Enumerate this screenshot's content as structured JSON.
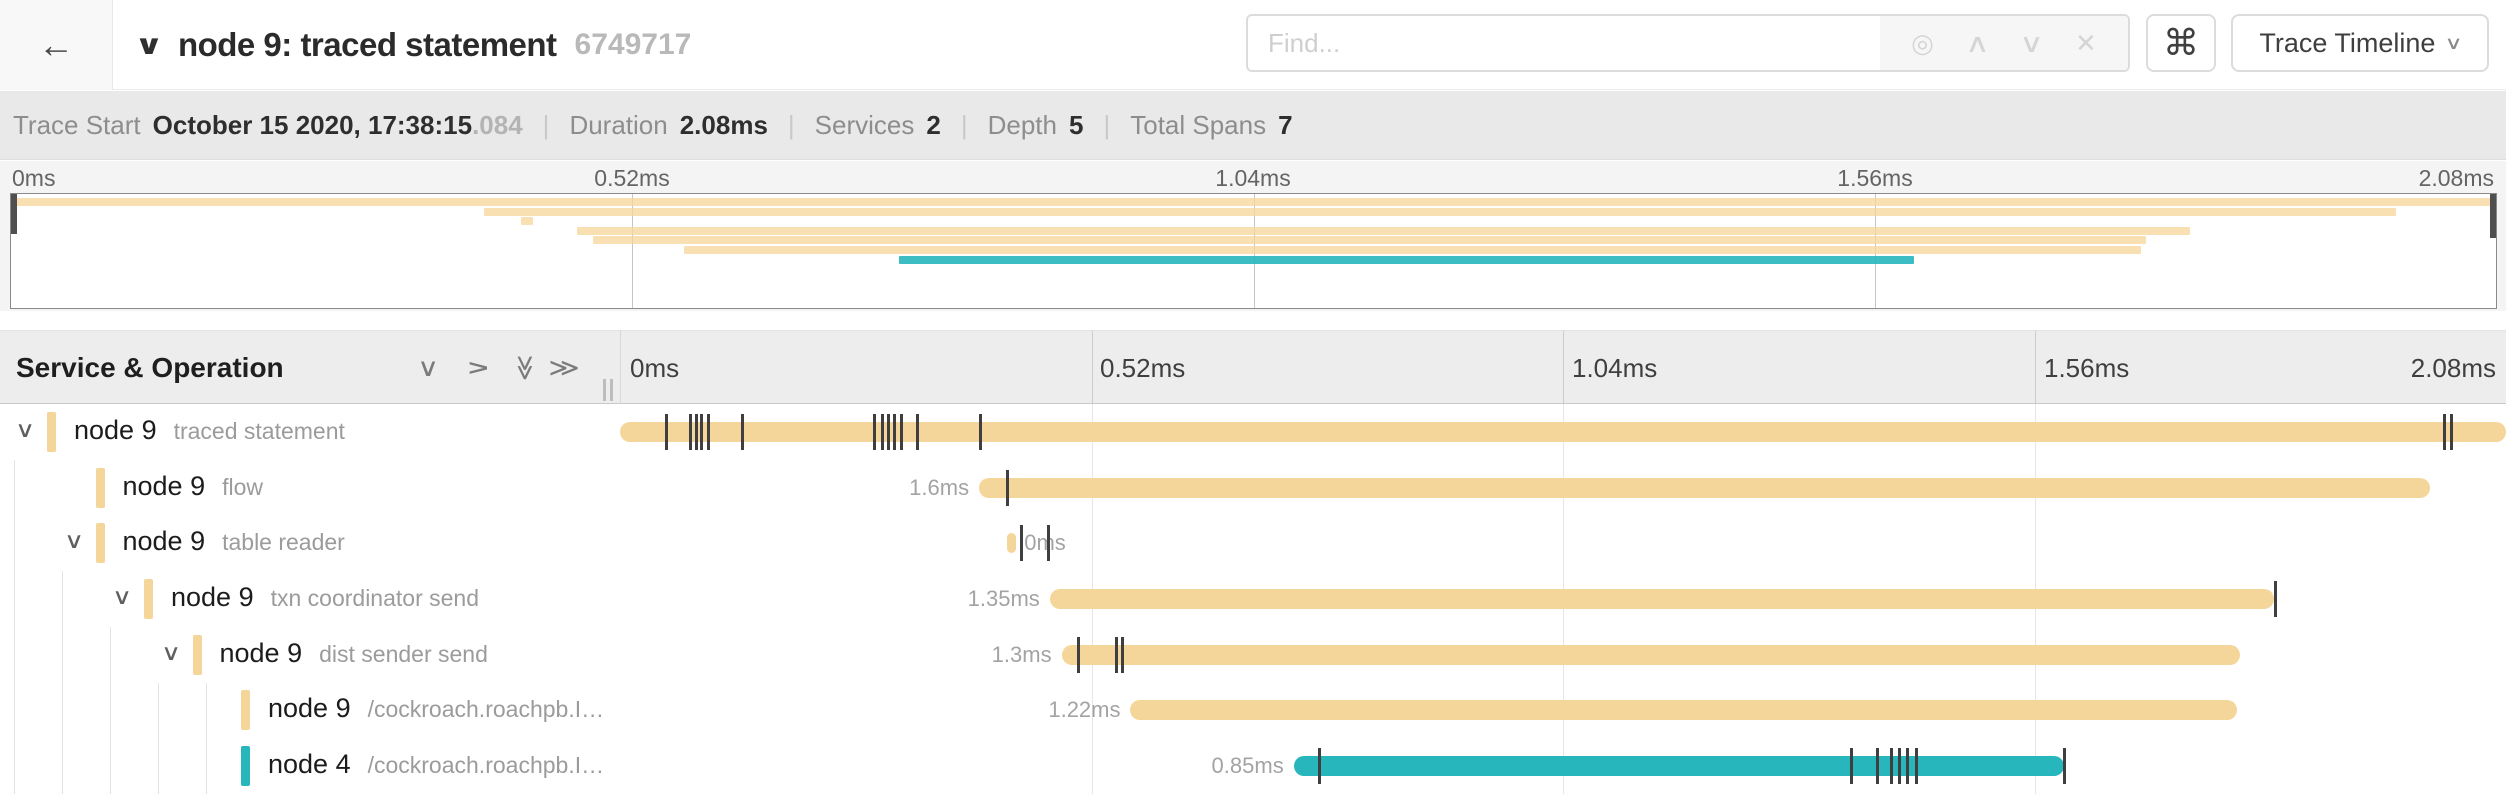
{
  "header": {
    "back_icon": "←",
    "collapse_chevron": "∨",
    "title": "node 9: traced statement",
    "trace_id": "6749717",
    "find": {
      "placeholder": "Find...",
      "target_icon": "◎",
      "prev_icon": "∧",
      "next_icon": "∨",
      "clear_icon": "✕"
    },
    "shortcut_button": "⌘",
    "view_dropdown": {
      "label": "Trace Timeline",
      "caret": "∨"
    }
  },
  "summary": {
    "items": [
      {
        "label": "Trace Start",
        "value": "October 15 2020, 17:38:15",
        "suffix": ".084"
      },
      {
        "label": "Duration",
        "value": "2.08ms",
        "suffix": ""
      },
      {
        "label": "Services",
        "value": "2",
        "suffix": ""
      },
      {
        "label": "Depth",
        "value": "5",
        "suffix": ""
      },
      {
        "label": "Total Spans",
        "value": "7",
        "suffix": ""
      }
    ],
    "separator": "|"
  },
  "timeline": {
    "total_ms": 2.08,
    "tick_labels": [
      "0ms",
      "0.52ms",
      "1.04ms",
      "1.56ms",
      "2.08ms"
    ],
    "left_header": "Service & Operation",
    "header_icons": [
      {
        "name": "collapse-one",
        "glyph": "∨",
        "style": "rot-none"
      },
      {
        "name": "expand-one",
        "glyph": "∨",
        "style": "rot-right"
      },
      {
        "name": "collapse-all",
        "glyph": "≫",
        "style": "dbl-down"
      },
      {
        "name": "expand-all",
        "glyph": "≫",
        "style": "rot-none"
      }
    ]
  },
  "spans": [
    {
      "service": "node 9",
      "operation": "traced statement",
      "depth": 0,
      "chevron": true,
      "color": "tan",
      "start_ms": 0,
      "duration_ms": 2.08,
      "duration_label": "",
      "label_side": "none",
      "events_ms": [
        0.05,
        0.076,
        0.083,
        0.088,
        0.096,
        0.133,
        0.279,
        0.288,
        0.294,
        0.301,
        0.309,
        0.326,
        0.396,
        2.01,
        2.018
      ]
    },
    {
      "service": "node 9",
      "operation": "flow",
      "depth": 1,
      "chevron": false,
      "color": "tan",
      "start_ms": 0.396,
      "duration_ms": 1.6,
      "duration_label": "1.6ms",
      "label_side": "left",
      "events_ms": [
        0.426
      ]
    },
    {
      "service": "node 9",
      "operation": "table reader",
      "depth": 1,
      "chevron": true,
      "color": "tan",
      "start_ms": 0.427,
      "duration_ms": 0.01,
      "duration_label": "0ms",
      "label_side": "right",
      "events_ms": [
        0.441,
        0.471
      ]
    },
    {
      "service": "node 9",
      "operation": "txn coordinator send",
      "depth": 2,
      "chevron": true,
      "color": "tan",
      "start_ms": 0.474,
      "duration_ms": 1.35,
      "duration_label": "1.35ms",
      "label_side": "left",
      "events_ms": [
        1.824
      ]
    },
    {
      "service": "node 9",
      "operation": "dist sender send",
      "depth": 3,
      "chevron": true,
      "color": "tan",
      "start_ms": 0.487,
      "duration_ms": 1.3,
      "duration_label": "1.3ms",
      "label_side": "left",
      "events_ms": [
        0.504,
        0.546,
        0.553
      ]
    },
    {
      "service": "node 9",
      "operation": "/cockroach.roachpb.I…",
      "depth": 4,
      "chevron": false,
      "color": "tan",
      "start_ms": 0.563,
      "duration_ms": 1.22,
      "duration_label": "1.22ms",
      "label_side": "left",
      "events_ms": []
    },
    {
      "service": "node 4",
      "operation": "/cockroach.roachpb.I…",
      "depth": 4,
      "chevron": false,
      "color": "teal",
      "start_ms": 0.743,
      "duration_ms": 0.85,
      "duration_label": "0.85ms",
      "label_side": "left",
      "events_ms": [
        0.77,
        1.357,
        1.385,
        1.401,
        1.409,
        1.418,
        1.428,
        1.591
      ]
    }
  ],
  "colors": {
    "tan": "#F5D69A",
    "teal": "#27B6BC",
    "log_tick": "#3F3F3F"
  }
}
